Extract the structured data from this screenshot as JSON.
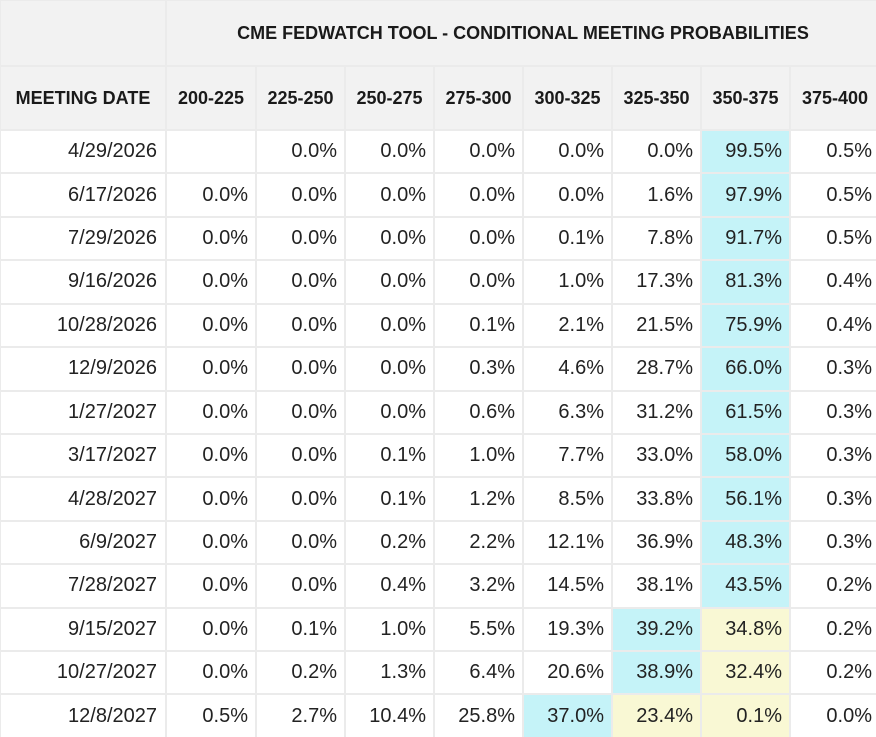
{
  "chart_data": {
    "type": "table",
    "title": "CME FEDWATCH TOOL - CONDITIONAL MEETING PROBABILITIES",
    "row_header_label": "MEETING DATE",
    "columns": [
      "200-225",
      "225-250",
      "250-275",
      "275-300",
      "300-325",
      "325-350",
      "350-375",
      "375-400"
    ],
    "rows": [
      {
        "date": "4/29/2026",
        "values": [
          "",
          "0.0%",
          "0.0%",
          "0.0%",
          "0.0%",
          "0.0%",
          "99.5%",
          "0.5%"
        ]
      },
      {
        "date": "6/17/2026",
        "values": [
          "0.0%",
          "0.0%",
          "0.0%",
          "0.0%",
          "0.0%",
          "1.6%",
          "97.9%",
          "0.5%"
        ]
      },
      {
        "date": "7/29/2026",
        "values": [
          "0.0%",
          "0.0%",
          "0.0%",
          "0.0%",
          "0.1%",
          "7.8%",
          "91.7%",
          "0.5%"
        ]
      },
      {
        "date": "9/16/2026",
        "values": [
          "0.0%",
          "0.0%",
          "0.0%",
          "0.0%",
          "1.0%",
          "17.3%",
          "81.3%",
          "0.4%"
        ]
      },
      {
        "date": "10/28/2026",
        "values": [
          "0.0%",
          "0.0%",
          "0.0%",
          "0.1%",
          "2.1%",
          "21.5%",
          "75.9%",
          "0.4%"
        ]
      },
      {
        "date": "12/9/2026",
        "values": [
          "0.0%",
          "0.0%",
          "0.0%",
          "0.3%",
          "4.6%",
          "28.7%",
          "66.0%",
          "0.3%"
        ]
      },
      {
        "date": "1/27/2027",
        "values": [
          "0.0%",
          "0.0%",
          "0.0%",
          "0.6%",
          "6.3%",
          "31.2%",
          "61.5%",
          "0.3%"
        ]
      },
      {
        "date": "3/17/2027",
        "values": [
          "0.0%",
          "0.0%",
          "0.1%",
          "1.0%",
          "7.7%",
          "33.0%",
          "58.0%",
          "0.3%"
        ]
      },
      {
        "date": "4/28/2027",
        "values": [
          "0.0%",
          "0.0%",
          "0.1%",
          "1.2%",
          "8.5%",
          "33.8%",
          "56.1%",
          "0.3%"
        ]
      },
      {
        "date": "6/9/2027",
        "values": [
          "0.0%",
          "0.0%",
          "0.2%",
          "2.2%",
          "12.1%",
          "36.9%",
          "48.3%",
          "0.3%"
        ]
      },
      {
        "date": "7/28/2027",
        "values": [
          "0.0%",
          "0.0%",
          "0.4%",
          "3.2%",
          "14.5%",
          "38.1%",
          "43.5%",
          "0.2%"
        ]
      },
      {
        "date": "9/15/2027",
        "values": [
          "0.0%",
          "0.1%",
          "1.0%",
          "5.5%",
          "19.3%",
          "39.2%",
          "34.8%",
          "0.2%"
        ]
      },
      {
        "date": "10/27/2027",
        "values": [
          "0.0%",
          "0.2%",
          "1.3%",
          "6.4%",
          "20.6%",
          "38.9%",
          "32.4%",
          "0.2%"
        ]
      },
      {
        "date": "12/8/2027",
        "values": [
          "0.5%",
          "2.7%",
          "10.4%",
          "25.8%",
          "37.0%",
          "23.4%",
          "0.1%",
          "0.0%"
        ]
      }
    ],
    "highlights": {
      "blue": [
        [
          0,
          6
        ],
        [
          1,
          6
        ],
        [
          2,
          6
        ],
        [
          3,
          6
        ],
        [
          4,
          6
        ],
        [
          5,
          6
        ],
        [
          6,
          6
        ],
        [
          7,
          6
        ],
        [
          8,
          6
        ],
        [
          9,
          6
        ],
        [
          10,
          6
        ],
        [
          11,
          5
        ],
        [
          12,
          5
        ],
        [
          13,
          4
        ]
      ],
      "yellow": [
        [
          11,
          6
        ],
        [
          12,
          6
        ],
        [
          13,
          5
        ],
        [
          13,
          6
        ]
      ]
    },
    "colors": {
      "highlight_blue": "#c5f3f8",
      "highlight_yellow": "#f9f8d4",
      "header_bg": "#f2f2f2",
      "grid_line": "#ebebeb"
    }
  }
}
